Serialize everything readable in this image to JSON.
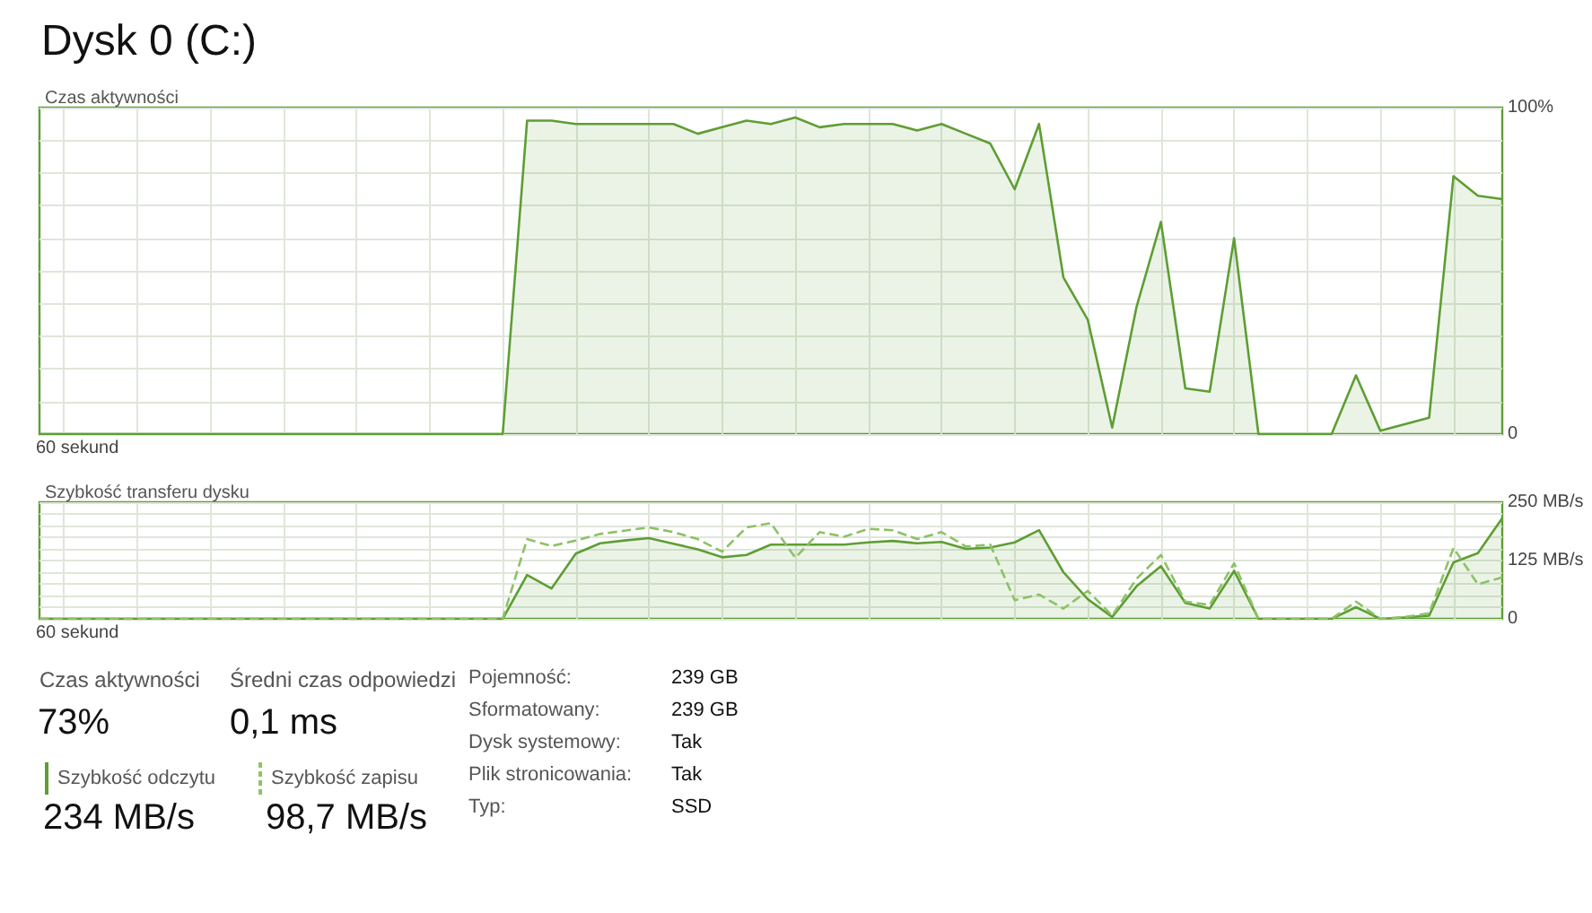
{
  "chart_data": [
    {
      "type": "area",
      "title": "Dysk 0 (C:)",
      "ylabel": "Czas aktywności",
      "marker": "none",
      "grid": true,
      "annotations": [
        "60 sekund"
      ],
      "categories": [
        null,
        null,
        null,
        null,
        null,
        null,
        null,
        null,
        null,
        null,
        null,
        null,
        null,
        null,
        null,
        null,
        null,
        null,
        null,
        null,
        null,
        null,
        null,
        null,
        null,
        null,
        null,
        null,
        null,
        null,
        null,
        null,
        null,
        null,
        null,
        null,
        null,
        null,
        null,
        null,
        null,
        null,
        null,
        null,
        null,
        null,
        null,
        null,
        null,
        null,
        null,
        null,
        null,
        null,
        null,
        null,
        null,
        null,
        null,
        null,
        null
      ],
      "series": [
        {
          "color": "#5e9e34",
          "values": [
            0,
            0,
            0,
            0,
            0,
            0,
            0,
            0,
            0,
            0,
            0,
            0,
            0,
            0,
            0,
            0,
            0,
            0,
            0,
            0,
            96,
            96,
            95,
            95,
            95,
            95,
            95,
            92,
            94,
            96,
            95,
            97,
            94,
            95,
            95,
            95,
            93,
            95,
            92,
            89,
            75,
            95,
            48,
            35,
            2,
            39,
            65,
            14,
            13,
            60,
            0,
            0,
            0,
            0,
            18,
            1,
            3,
            5,
            79,
            73,
            72
          ]
        }
      ],
      "ylim": [
        0,
        100
      ],
      "yticks": [
        {
          "value": 0,
          "label": "0"
        },
        {
          "value": 10,
          "label": null
        },
        {
          "value": 20,
          "label": null
        },
        {
          "value": 30,
          "label": null
        },
        {
          "value": 40,
          "label": null
        },
        {
          "value": 50,
          "label": null
        },
        {
          "value": 60,
          "label": null
        },
        {
          "value": 70,
          "label": null
        },
        {
          "value": 80,
          "label": null
        },
        {
          "value": 90,
          "label": null
        },
        {
          "value": 100,
          "label": "100%"
        }
      ]
    },
    {
      "type": "area",
      "ylabel": "Szybkość transferu dysku",
      "marker": "none",
      "grid": true,
      "legend": "bottom",
      "annotations": [
        "60 sekund"
      ],
      "categories": [
        null,
        null,
        null,
        null,
        null,
        null,
        null,
        null,
        null,
        null,
        null,
        null,
        null,
        null,
        null,
        null,
        null,
        null,
        null,
        null,
        null,
        null,
        null,
        null,
        null,
        null,
        null,
        null,
        null,
        null,
        null,
        null,
        null,
        null,
        null,
        null,
        null,
        null,
        null,
        null,
        null,
        null,
        null,
        null,
        null,
        null,
        null,
        null,
        null,
        null,
        null,
        null,
        null,
        null,
        null,
        null,
        null,
        null,
        null,
        null,
        null
      ],
      "series": [
        {
          "name": "Szybkość odczytu",
          "color": "#5e9e34",
          "line_style": "solid",
          "values": [
            0,
            0,
            0,
            0,
            0,
            0,
            0,
            0,
            0,
            0,
            0,
            0,
            0,
            0,
            0,
            0,
            0,
            0,
            0,
            0,
            94,
            65,
            140,
            162,
            168,
            173,
            161,
            149,
            132,
            137,
            159,
            159,
            159,
            159,
            164,
            167,
            162,
            165,
            150,
            153,
            164,
            190,
            100,
            42,
            4,
            70,
            113,
            34,
            22,
            103,
            0,
            0,
            0,
            0,
            25,
            0,
            3,
            7,
            121,
            141,
            216
          ]
        },
        {
          "name": "Szybkość zapisu",
          "type": "line",
          "color": "#8cc266",
          "line_style": "dashed",
          "values": [
            0,
            0,
            0,
            0,
            0,
            0,
            0,
            0,
            0,
            0,
            0,
            0,
            0,
            0,
            0,
            0,
            0,
            0,
            0,
            0,
            171,
            156,
            168,
            182,
            189,
            196,
            186,
            171,
            144,
            196,
            205,
            131,
            186,
            176,
            193,
            190,
            171,
            186,
            155,
            159,
            40,
            52,
            22,
            60,
            7,
            86,
            137,
            37,
            30,
            119,
            0,
            0,
            0,
            0,
            37,
            0,
            4,
            12,
            152,
            74,
            89
          ]
        }
      ],
      "ylim": [
        0,
        250
      ],
      "yticks": [
        {
          "value": 0,
          "label": "0"
        },
        {
          "value": 25,
          "label": null
        },
        {
          "value": 50,
          "label": null
        },
        {
          "value": 75,
          "label": null
        },
        {
          "value": 100,
          "label": null
        },
        {
          "value": 125,
          "label": "125 MB/s"
        },
        {
          "value": 150,
          "label": null
        },
        {
          "value": 175,
          "label": null
        },
        {
          "value": 200,
          "label": null
        },
        {
          "value": 225,
          "label": null
        },
        {
          "value": 250,
          "label": "250 MB/s"
        }
      ]
    },
    {
      "type": "other",
      "annotations": [
        "Czas aktywności",
        "73%",
        "Średni czas odpowiedzi",
        "0,1 ms",
        "234 MB/s",
        "98,7 MB/s",
        "Pojemność:",
        "239 GB",
        "Sformatowany:",
        "239 GB",
        "Dysk systemowy:",
        "Tak",
        "Plik stronicowania:",
        "Tak",
        "Typ:",
        "SSD"
      ]
    }
  ]
}
